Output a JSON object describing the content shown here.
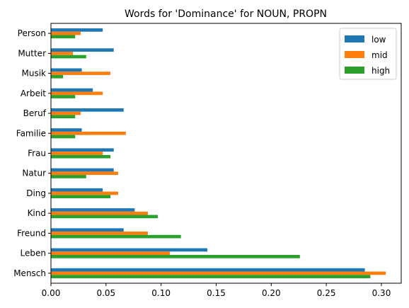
{
  "chart_data": {
    "type": "bar",
    "orientation": "horizontal",
    "title": "Words for 'Dominance' for NOUN, PROPN",
    "xlabel": "",
    "ylabel": "",
    "xlim": [
      0,
      0.318
    ],
    "xticks": [
      0.0,
      0.05,
      0.1,
      0.15,
      0.2,
      0.25,
      0.3
    ],
    "xtick_labels": [
      "0.00",
      "0.05",
      "0.10",
      "0.15",
      "0.20",
      "0.25",
      "0.30"
    ],
    "categories": [
      "Mensch",
      "Leben",
      "Freund",
      "Kind",
      "Ding",
      "Natur",
      "Frau",
      "Familie",
      "Beruf",
      "Arbeit",
      "Musik",
      "Mutter",
      "Person"
    ],
    "series": [
      {
        "name": "low",
        "color": "#1f77b4",
        "values": [
          0.285,
          0.142,
          0.066,
          0.076,
          0.047,
          0.057,
          0.057,
          0.028,
          0.066,
          0.038,
          0.028,
          0.057,
          0.047
        ]
      },
      {
        "name": "mid",
        "color": "#ff7f0e",
        "values": [
          0.304,
          0.108,
          0.088,
          0.088,
          0.061,
          0.061,
          0.047,
          0.068,
          0.027,
          0.047,
          0.054,
          0.02,
          0.027
        ]
      },
      {
        "name": "high",
        "color": "#2ca02c",
        "values": [
          0.29,
          0.226,
          0.118,
          0.097,
          0.054,
          0.032,
          0.054,
          0.022,
          0.022,
          0.022,
          0.011,
          0.032,
          0.022
        ]
      }
    ],
    "legend_position": "top-right",
    "grid": false
  }
}
